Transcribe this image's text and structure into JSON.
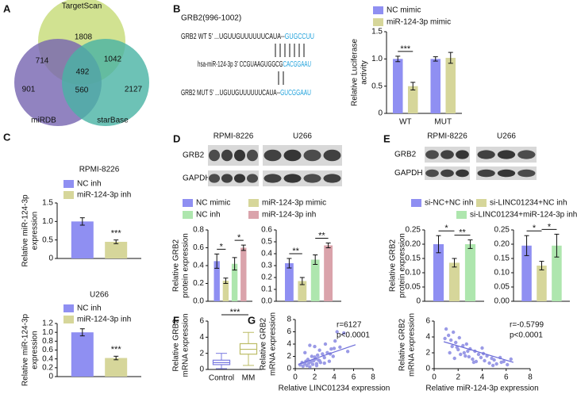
{
  "panel_labels": [
    "A",
    "B",
    "C",
    "D",
    "E",
    "F",
    "G"
  ],
  "venn": {
    "sets": [
      "TargetScan",
      "miRDB",
      "starBase"
    ],
    "counts": {
      "targetscan_only": 1808,
      "targetscan_mirdb": 714,
      "targetscan_starbase": 1042,
      "all": 492,
      "mirdb_only": 901,
      "mirdb_starbase": 560,
      "starbase_only": 2127
    }
  },
  "sequences": {
    "title": "GRB2(996-1002)",
    "wt": {
      "prefix": "GRB2 WT 5' ...UGUUGUUUUUUCAUA--",
      "site": "GUGCCUU"
    },
    "mir": {
      "prefix": "hsa-miR-124-3p 3' CCGUAAGUGGCG",
      "site": "CACGGAAU"
    },
    "mut": {
      "prefix": "GRB2 MUT 5' ...UGUUGUUUUUUCAUA--",
      "site": "GUCGGAAU"
    }
  },
  "blots": {
    "D": {
      "cell_lines": [
        "RPMI-8226",
        "U266"
      ],
      "proteins": [
        "GRB2",
        "GAPDH"
      ]
    },
    "E": {
      "cell_lines": [
        "RPMI-8226",
        "U266"
      ],
      "proteins": [
        "GRB2",
        "GAPDH"
      ]
    }
  },
  "chart_data": [
    {
      "type": "bar",
      "ylabel": [
        "Relative Luciferase",
        "activity"
      ],
      "categories": [
        "WT",
        "MUT"
      ],
      "ylim": [
        0,
        1.5
      ],
      "yticks": [
        0,
        0.5,
        {
          "value": 1,
          "label": "1.0"
        },
        1.5
      ],
      "series": [
        {
          "name": "NC mimic",
          "color": "#8f8ff2",
          "values": [
            1.0,
            1.0
          ],
          "errors": [
            0.05,
            0.04
          ]
        },
        {
          "name": "miR-124-3p mimic",
          "color": "#d6d69a",
          "values": [
            0.5,
            1.02
          ],
          "errors": [
            0.07,
            0.1
          ]
        }
      ],
      "significance": [
        "***"
      ]
    },
    {
      "type": "bar",
      "title": "RPMI-8226",
      "ylabel": [
        "Relative miR-124-3p",
        "expression"
      ],
      "categories": [
        null
      ],
      "ylim": [
        0,
        1.5
      ],
      "yticks": [
        0,
        0.5,
        {
          "value": 1,
          "label": "1.0"
        },
        1.5
      ],
      "series": [
        {
          "name": "NC inh",
          "color": "#8f8ff2",
          "values": [
            1.0
          ],
          "errors": [
            0.1
          ]
        },
        {
          "name": "miR-124-3p inh",
          "color": "#d6d69a",
          "values": [
            0.45
          ],
          "errors": [
            0.05
          ]
        }
      ],
      "significance": [
        "***"
      ]
    },
    {
      "type": "bar",
      "title": "U266",
      "ylabel": [
        "Relative miR-124-3p",
        "expression"
      ],
      "categories": [
        null
      ],
      "ylim": [
        0,
        1.2
      ],
      "yticks": [
        0,
        0.2,
        0.4,
        0.6,
        0.8,
        {
          "value": 1,
          "label": "1.0"
        },
        1.2
      ],
      "series": [
        {
          "name": "NC inh",
          "color": "#8f8ff2",
          "values": [
            1.0
          ],
          "errors": [
            0.08
          ]
        },
        {
          "name": "miR-124-3p inh",
          "color": "#d6d69a",
          "values": [
            0.42
          ],
          "errors": [
            0.04
          ]
        }
      ],
      "significance": [
        "***"
      ]
    },
    {
      "type": "bar",
      "ylabel": [
        "Relative GRB2",
        "protein expression"
      ],
      "categories": [
        null
      ],
      "ylim": [
        0,
        0.8
      ],
      "yticks": [
        {
          "value": 0,
          "label": "0.0"
        },
        0.2,
        0.4,
        0.6,
        0.8
      ],
      "series": [
        {
          "name": "NC mimic",
          "color": "#8f8ff2",
          "values": [
            0.45
          ],
          "errors": [
            0.08
          ]
        },
        {
          "name": "miR-124-3p mimic",
          "color": "#d6d69a",
          "values": [
            0.23
          ],
          "errors": [
            0.03
          ]
        },
        {
          "name": "NC inh",
          "color": "#aee6ae",
          "values": [
            0.42
          ],
          "errors": [
            0.07
          ]
        },
        {
          "name": "miR-124-3p inh",
          "color": "#daa3ab",
          "values": [
            0.6
          ],
          "errors": [
            0.03
          ]
        }
      ],
      "significance": [
        "*",
        "*"
      ]
    },
    {
      "type": "bar",
      "categories": [
        null
      ],
      "ylim": [
        0,
        0.6
      ],
      "yticks": [
        {
          "value": 0,
          "label": "0.0"
        },
        0.1,
        0.2,
        0.3,
        0.4,
        0.5,
        0.6
      ],
      "series": [
        {
          "color": "#8f8ff2",
          "values": [
            0.32
          ],
          "errors": [
            0.04
          ]
        },
        {
          "color": "#d6d69a",
          "values": [
            0.17
          ],
          "errors": [
            0.03
          ]
        },
        {
          "color": "#aee6ae",
          "values": [
            0.35
          ],
          "errors": [
            0.04
          ]
        },
        {
          "color": "#daa3ab",
          "values": [
            0.47
          ],
          "errors": [
            0.02
          ]
        }
      ],
      "significance": [
        "**",
        "**"
      ]
    },
    {
      "type": "bar",
      "ylabel": [
        "Relative GRB2",
        "protein expression"
      ],
      "categories": [
        null
      ],
      "ylim": [
        0,
        0.25
      ],
      "yticks": [
        0,
        0.05,
        {
          "value": 0.1,
          "label": "0.10"
        },
        0.15,
        {
          "value": 0.2,
          "label": "0.20"
        },
        0.25
      ],
      "series": [
        {
          "name": "si-NC+NC inh",
          "color": "#8f8ff2",
          "values": [
            0.2
          ],
          "errors": [
            0.03
          ]
        },
        {
          "name": "si-LINC01234+NC inh",
          "color": "#d6d69a",
          "values": [
            0.135
          ],
          "errors": [
            0.015
          ]
        },
        {
          "name": "si-LINC01234+miR-124-3p inh",
          "color": "#aee6ae",
          "values": [
            0.2
          ],
          "errors": [
            0.015
          ]
        }
      ],
      "significance": [
        "*",
        "**"
      ]
    },
    {
      "type": "bar",
      "categories": [
        null
      ],
      "ylim": [
        0,
        0.25
      ],
      "yticks": [
        {
          "value": 0,
          "label": "0.00"
        },
        0.05,
        {
          "value": 0.1,
          "label": "0.10"
        },
        0.15,
        {
          "value": 0.2,
          "label": "0.20"
        },
        0.25
      ],
      "series": [
        {
          "color": "#8f8ff2",
          "values": [
            0.195
          ],
          "errors": [
            0.035
          ]
        },
        {
          "color": "#d6d69a",
          "values": [
            0.125
          ],
          "errors": [
            0.015
          ]
        },
        {
          "color": "#aee6ae",
          "values": [
            0.195
          ],
          "errors": [
            0.04
          ]
        }
      ],
      "significance": [
        "*",
        "*"
      ]
    },
    {
      "type": "box",
      "ylabel": [
        "Relative GRB2",
        "mRNA expression"
      ],
      "categories": [
        "Control",
        "MM"
      ],
      "colors": [
        "#7a7ae0",
        "#bcbc66"
      ],
      "ylim": [
        0,
        6
      ],
      "yticks": [
        0,
        2,
        4,
        6
      ],
      "min": [
        0.1,
        0.5
      ],
      "q1": [
        0.6,
        1.9
      ],
      "median": [
        0.85,
        2.5
      ],
      "q3": [
        1.15,
        3.2
      ],
      "max": [
        2.0,
        4.6
      ],
      "significance": [
        "***"
      ]
    },
    {
      "type": "scatter",
      "ylabel": [
        "Relative GRB2",
        "mRNA expression"
      ],
      "xlabel": "Relative LINC01234 expression",
      "color": "#9a9ae6",
      "line_color": "#6c6cd8",
      "xlim": [
        0,
        8
      ],
      "xticks": [
        0,
        2,
        4,
        6,
        8
      ],
      "ylim": [
        0,
        8
      ],
      "yticks": [
        0,
        2,
        4,
        6,
        8
      ],
      "annotations": [
        "r=6127",
        "p<0.0001"
      ],
      "x": [
        0.5,
        0.7,
        0.8,
        1.0,
        1.1,
        1.2,
        1.3,
        1.4,
        1.5,
        1.6,
        1.7,
        1.8,
        1.9,
        2.0,
        2.1,
        2.2,
        2.3,
        2.4,
        2.5,
        2.6,
        2.8,
        3.0,
        3.1,
        3.3,
        3.5,
        3.7,
        3.9,
        4.1,
        4.3,
        4.6,
        5.0,
        5.4,
        1.0,
        1.5,
        2.0,
        2.5,
        3.0,
        3.6,
        4.0,
        2.2
      ],
      "y": [
        0.6,
        1.0,
        0.4,
        0.8,
        1.2,
        0.5,
        1.5,
        0.9,
        0.3,
        1.1,
        2.0,
        0.7,
        1.3,
        3.6,
        1.6,
        0.8,
        2.2,
        1.4,
        3.0,
        1.0,
        2.4,
        1.8,
        4.0,
        2.6,
        1.2,
        3.2,
        2.0,
        4.5,
        6.0,
        3.5,
        5.8,
        2.8,
        2.6,
        3.8,
        1.9,
        1.3,
        0.9,
        2.4,
        3.3,
        0.5
      ],
      "trendline": {
        "x": [
          0.3,
          6.2
        ],
        "y": [
          0.7,
          3.9
        ]
      }
    },
    {
      "type": "scatter",
      "ylabel": [
        "Relative GRB2",
        "mRNA expression"
      ],
      "xlabel": "Relative miR-124-3p expression",
      "color": "#9a9ae6",
      "line_color": "#6c6cd8",
      "xlim": [
        0,
        8
      ],
      "xticks": [
        0,
        2,
        4,
        6,
        8
      ],
      "ylim": [
        0,
        6
      ],
      "yticks": [
        0,
        2,
        4,
        6
      ],
      "annotations": [
        "r=-0.5799",
        "p<0.0001"
      ],
      "x": [
        1.0,
        1.2,
        1.4,
        1.5,
        1.6,
        1.8,
        2.0,
        2.1,
        2.2,
        2.4,
        2.5,
        2.7,
        2.9,
        3.0,
        3.2,
        3.4,
        3.5,
        3.7,
        3.9,
        4.0,
        4.2,
        4.4,
        4.6,
        4.8,
        5.0,
        5.2,
        5.5,
        5.8,
        6.1,
        6.4,
        1.3,
        1.9,
        2.6,
        3.3,
        4.1,
        4.9,
        5.6,
        0.9,
        1.7,
        2.8
      ],
      "y": [
        5.0,
        4.2,
        3.6,
        2.8,
        4.6,
        3.3,
        2.4,
        3.9,
        1.8,
        2.9,
        2.0,
        3.1,
        1.5,
        2.5,
        1.2,
        2.2,
        0.9,
        1.8,
        1.4,
        2.6,
        1.0,
        1.6,
        0.7,
        1.3,
        1.1,
        0.6,
        1.4,
        0.9,
        0.5,
        1.2,
        2.0,
        2.7,
        1.6,
        0.8,
        1.9,
        0.4,
        0.8,
        3.8,
        1.3,
        2.2
      ],
      "trendline": {
        "x": [
          0.8,
          6.6
        ],
        "y": [
          3.4,
          0.8
        ]
      }
    }
  ]
}
